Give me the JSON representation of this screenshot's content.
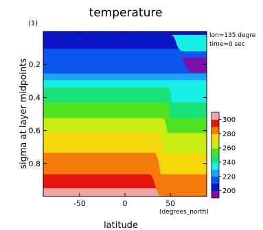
{
  "chart_data": {
    "type": "heatmap",
    "title": "temperature",
    "panel_label": "(1)",
    "info": {
      "lon": "lon=135 degre",
      "time": "time=0 sec"
    },
    "xlabel": "latitude",
    "xunit": "(degrees_north)",
    "ylabel": "sigma at layer midpoints",
    "xlim": [
      -90,
      90
    ],
    "ylim": [
      0,
      1
    ],
    "y_inverted": true,
    "x_ticks": [
      -50,
      0,
      50
    ],
    "x_tick_labels": [
      "-50",
      "0",
      "50"
    ],
    "y_ticks": [
      0.2,
      0.4,
      0.6,
      0.8
    ],
    "y_tick_labels": [
      "0.2",
      "0.4",
      "0.6",
      "0.8"
    ],
    "colorbar": {
      "levels": [
        200,
        220,
        240,
        260,
        280,
        300
      ],
      "tick_labels": [
        "300",
        "280",
        "260",
        "240",
        "220",
        "200"
      ],
      "bands": [
        {
          "from": 190,
          "to": 200,
          "color": "#7e0fa8"
        },
        {
          "from": 200,
          "to": 210,
          "color": "#0a16c8"
        },
        {
          "from": 210,
          "to": 220,
          "color": "#0c56ee"
        },
        {
          "from": 220,
          "to": 230,
          "color": "#1aa2f5"
        },
        {
          "from": 230,
          "to": 240,
          "color": "#17f0e6"
        },
        {
          "from": 240,
          "to": 250,
          "color": "#19e27a"
        },
        {
          "from": 250,
          "to": 260,
          "color": "#4fe321"
        },
        {
          "from": 260,
          "to": 270,
          "color": "#c9ec13"
        },
        {
          "from": 270,
          "to": 280,
          "color": "#f5d80c"
        },
        {
          "from": 280,
          "to": 290,
          "color": "#f57a0c"
        },
        {
          "from": 290,
          "to": 300,
          "color": "#e6150b"
        },
        {
          "from": 300,
          "to": 310,
          "color": "#f2a5a5"
        }
      ]
    },
    "layers_southern_side": [
      {
        "sigma_top": 0.0,
        "sigma_bottom": 0.105,
        "value": 205
      },
      {
        "sigma_top": 0.105,
        "sigma_bottom": 0.255,
        "value": 215
      },
      {
        "sigma_top": 0.255,
        "sigma_bottom": 0.295,
        "value": 225
      },
      {
        "sigma_top": 0.295,
        "sigma_bottom": 0.34,
        "value": 235
      },
      {
        "sigma_top": 0.34,
        "sigma_bottom": 0.43,
        "value": 245
      },
      {
        "sigma_top": 0.43,
        "sigma_bottom": 0.525,
        "value": 255
      },
      {
        "sigma_top": 0.525,
        "sigma_bottom": 0.615,
        "value": 265
      },
      {
        "sigma_top": 0.615,
        "sigma_bottom": 0.735,
        "value": 275
      },
      {
        "sigma_top": 0.735,
        "sigma_bottom": 0.865,
        "value": 285
      },
      {
        "sigma_top": 0.865,
        "sigma_bottom": 0.95,
        "value": 295
      },
      {
        "sigma_top": 0.95,
        "sigma_bottom": 1.0,
        "value": 305
      }
    ],
    "polar_features": [
      {
        "kind": "upper-level cold pool",
        "lat_range": [
          60,
          90
        ],
        "sigma_range": [
          0.16,
          0.25
        ],
        "value": 195
      },
      {
        "kind": "upper-level cyan tongue",
        "lat_range": [
          50,
          90
        ],
        "sigma_range": [
          0.02,
          0.12
        ],
        "value": 235
      }
    ]
  }
}
